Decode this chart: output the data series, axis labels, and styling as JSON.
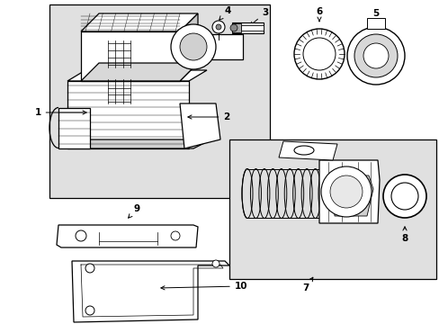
{
  "bg_color": "#ffffff",
  "box_bg": "#e0e0e0",
  "part_fill": "#ffffff",
  "lw_main": 0.9,
  "lw_detail": 0.5,
  "label_fontsize": 7.5,
  "arrow_style": "->",
  "labels": [
    "1",
    "2",
    "3",
    "4",
    "5",
    "6",
    "7",
    "8",
    "9",
    "10"
  ]
}
